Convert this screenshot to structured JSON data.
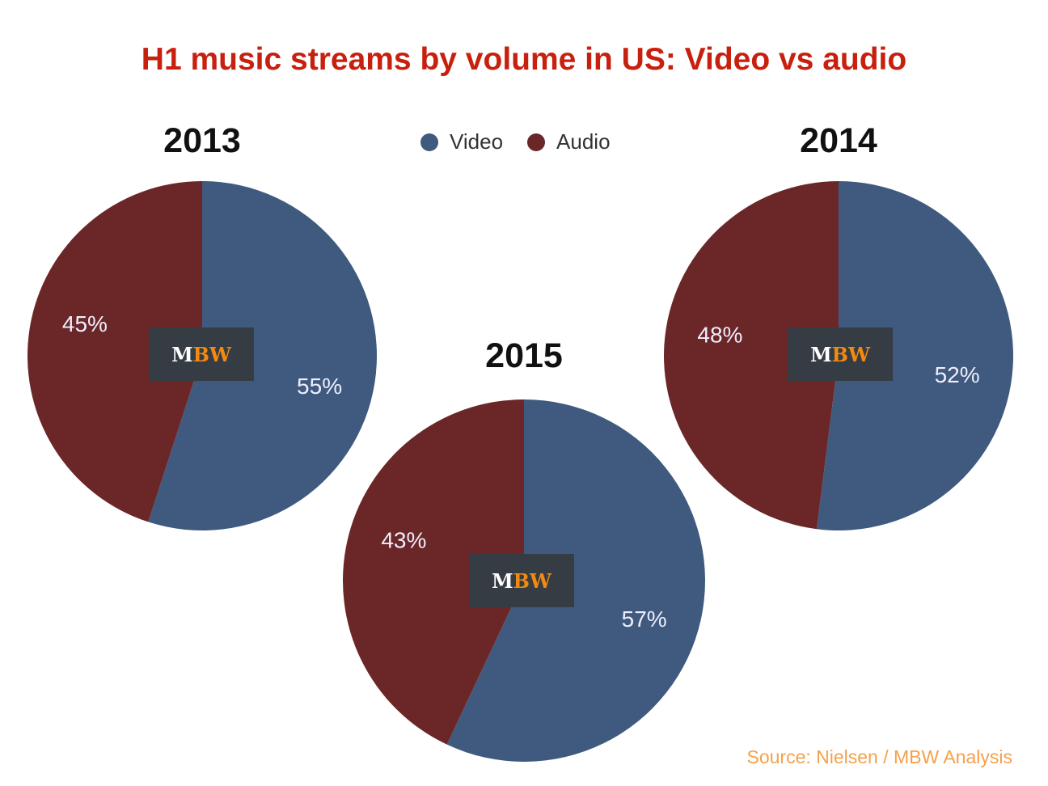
{
  "title": "H1 music streams by volume in US: Video vs audio",
  "legend": [
    {
      "label": "Video",
      "color": "#3f5a7e"
    },
    {
      "label": "Audio",
      "color": "#6b2727"
    }
  ],
  "logo": {
    "m": "M",
    "bw": "BW"
  },
  "source": "Source: Nielsen / MBW Analysis",
  "chart_data": [
    {
      "type": "pie",
      "title": "2013",
      "labels": [
        "Video",
        "Audio"
      ],
      "values": [
        55,
        45
      ],
      "data_labels": [
        "55%",
        "45%"
      ]
    },
    {
      "type": "pie",
      "title": "2014",
      "labels": [
        "Video",
        "Audio"
      ],
      "values": [
        52,
        48
      ],
      "data_labels": [
        "52%",
        "48%"
      ]
    },
    {
      "type": "pie",
      "title": "2015",
      "labels": [
        "Video",
        "Audio"
      ],
      "values": [
        57,
        43
      ],
      "data_labels": [
        "57%",
        "43%"
      ]
    }
  ]
}
